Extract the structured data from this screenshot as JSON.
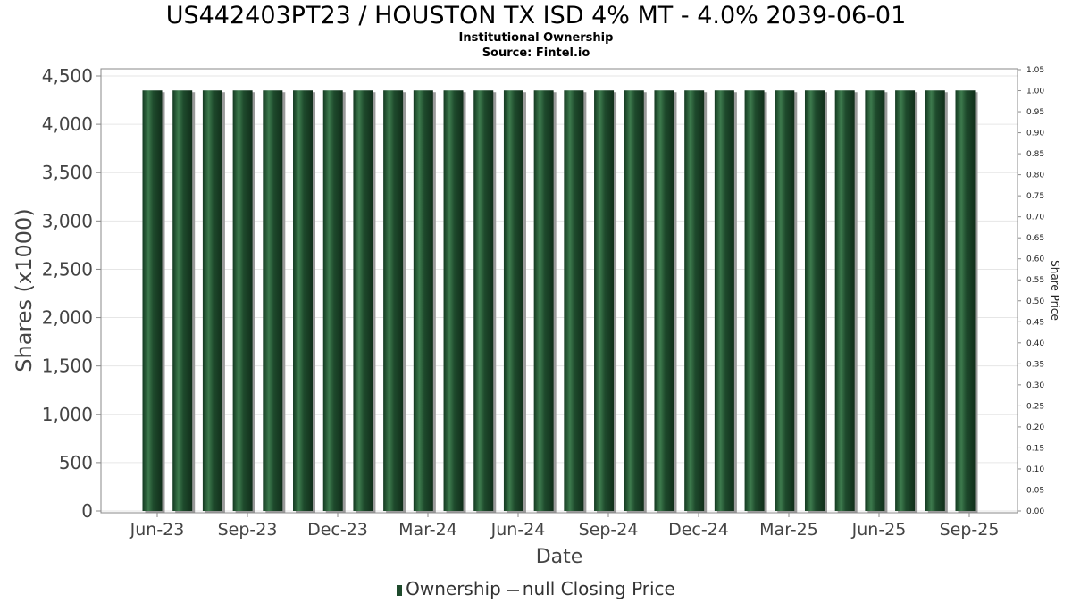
{
  "chart_data": {
    "type": "bar",
    "title": "US442403PT23 / HOUSTON TX ISD 4% MT - 4.0% 2039-06-01",
    "subtitle": "Institutional Ownership",
    "source": "Source: Fintel.io",
    "xlabel": "Date",
    "ylabel": "Shares (x1000)",
    "y2label": "Share Price",
    "ylim": [
      0,
      4560
    ],
    "y2lim": [
      0,
      1.05
    ],
    "y_ticks": [
      "0",
      "500",
      "1,000",
      "1,500",
      "2,000",
      "2,500",
      "3,000",
      "3,500",
      "4,000",
      "4,500"
    ],
    "y_tick_values": [
      0,
      500,
      1000,
      1500,
      2000,
      2500,
      3000,
      3500,
      4000,
      4500
    ],
    "y2_ticks": [
      "0.00",
      "0.05",
      "0.10",
      "0.15",
      "0.20",
      "0.25",
      "0.30",
      "0.35",
      "0.40",
      "0.45",
      "0.50",
      "0.55",
      "0.60",
      "0.65",
      "0.70",
      "0.75",
      "0.80",
      "0.85",
      "0.90",
      "0.95",
      "1.00",
      "1.05"
    ],
    "y2_tick_values": [
      0,
      0.05,
      0.1,
      0.15,
      0.2,
      0.25,
      0.3,
      0.35,
      0.4,
      0.45,
      0.5,
      0.55,
      0.6,
      0.65,
      0.7,
      0.75,
      0.8,
      0.85,
      0.9,
      0.95,
      1.0,
      1.05
    ],
    "x_ticks": [
      "Jun-23",
      "Sep-23",
      "Dec-23",
      "Mar-24",
      "Jun-24",
      "Sep-24",
      "Dec-24",
      "Mar-25",
      "Jun-25",
      "Sep-25"
    ],
    "bar_count": 28,
    "series": [
      {
        "name": "Ownership",
        "values": [
          4350,
          4350,
          4350,
          4350,
          4350,
          4350,
          4350,
          4350,
          4350,
          4350,
          4350,
          4350,
          4350,
          4350,
          4350,
          4350,
          4350,
          4350,
          4350,
          4350,
          4350,
          4350,
          4350,
          4350,
          4350,
          4350,
          4350,
          4350
        ]
      }
    ],
    "legend": [
      {
        "label": "Ownership",
        "kind": "bar"
      },
      {
        "label": "null Closing Price",
        "kind": "line"
      }
    ],
    "legend_placement": "bottom",
    "grid": true,
    "colors": {
      "bar": "#1e4a2c",
      "bar_highlight": "#3d7a4d",
      "bar_shadow": "#9a9a9a",
      "grid": "#e6e6e6",
      "axis": "#888888"
    }
  }
}
